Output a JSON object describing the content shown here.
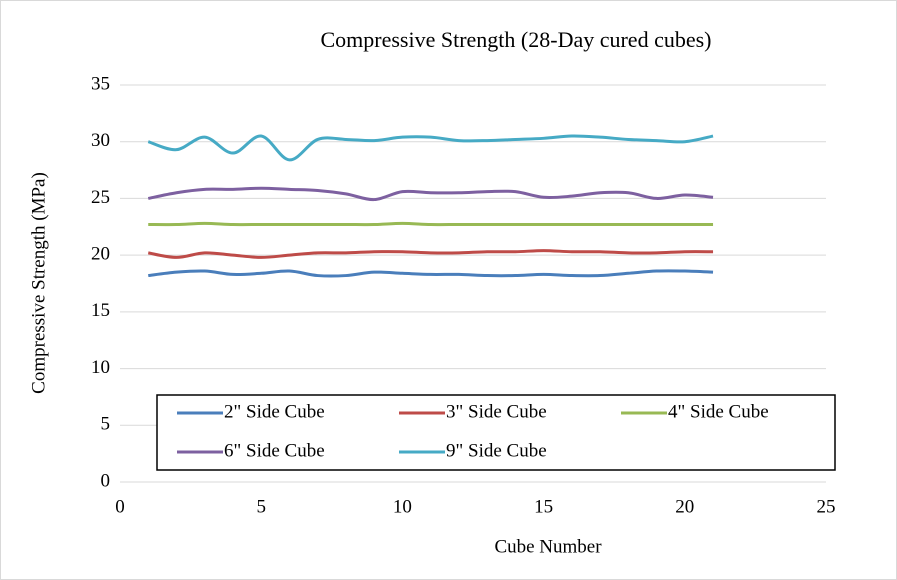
{
  "chart_data": {
    "type": "line",
    "title": "Compressive Strength (28-Day cured cubes)",
    "x_label": "Cube Number",
    "y_label": "Compressive Strength (MPa)",
    "x": [
      1,
      2,
      3,
      4,
      5,
      6,
      7,
      8,
      9,
      10,
      11,
      12,
      13,
      14,
      15,
      16,
      17,
      18,
      19,
      20,
      21
    ],
    "series": [
      {
        "name": "2\" Side Cube",
        "color": "#4a7ebb",
        "values": [
          18.2,
          18.5,
          18.6,
          18.3,
          18.4,
          18.6,
          18.2,
          18.2,
          18.5,
          18.4,
          18.3,
          18.3,
          18.2,
          18.2,
          18.3,
          18.2,
          18.2,
          18.4,
          18.6,
          18.6,
          18.5
        ]
      },
      {
        "name": "3\" Side Cube",
        "color": "#be4b48",
        "values": [
          20.2,
          19.8,
          20.2,
          20.0,
          19.8,
          20.0,
          20.2,
          20.2,
          20.3,
          20.3,
          20.2,
          20.2,
          20.3,
          20.3,
          20.4,
          20.3,
          20.3,
          20.2,
          20.2,
          20.3,
          20.3
        ]
      },
      {
        "name": "4\" Side Cube",
        "color": "#98b954",
        "values": [
          22.7,
          22.7,
          22.8,
          22.7,
          22.7,
          22.7,
          22.7,
          22.7,
          22.7,
          22.8,
          22.7,
          22.7,
          22.7,
          22.7,
          22.7,
          22.7,
          22.7,
          22.7,
          22.7,
          22.7,
          22.7
        ]
      },
      {
        "name": "6\" Side Cube",
        "color": "#7d60a0",
        "values": [
          25.0,
          25.5,
          25.8,
          25.8,
          25.9,
          25.8,
          25.7,
          25.4,
          24.9,
          25.6,
          25.5,
          25.5,
          25.6,
          25.6,
          25.1,
          25.2,
          25.5,
          25.5,
          25.0,
          25.3,
          25.1
        ]
      },
      {
        "name": "9\" Side Cube",
        "color": "#46aac5",
        "values": [
          30.0,
          29.3,
          30.4,
          29.0,
          30.5,
          28.4,
          30.2,
          30.2,
          30.1,
          30.4,
          30.4,
          30.1,
          30.1,
          30.2,
          30.3,
          30.5,
          30.4,
          30.2,
          30.1,
          30.0,
          30.5
        ]
      }
    ],
    "xlim": [
      0,
      25
    ],
    "xticks": [
      0,
      5,
      10,
      15,
      20,
      25
    ],
    "ylim": [
      0,
      35
    ],
    "yticks": [
      0,
      5,
      10,
      15,
      20,
      25,
      30,
      35
    ],
    "grid": true,
    "smooth": true,
    "legend": "bottom"
  }
}
